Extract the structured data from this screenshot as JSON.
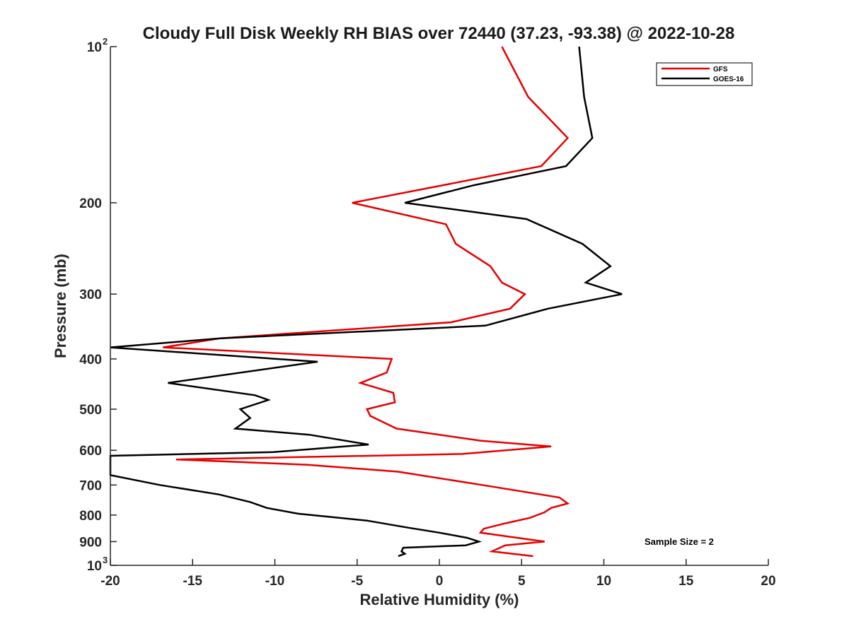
{
  "chart_data": {
    "type": "line",
    "title": "Cloudy Full Disk Weekly RH BIAS over 72440 (37.23, -93.38) @ 2022-10-28",
    "xlabel": "Relative Humidity (%)",
    "ylabel": "Pressure (mb)",
    "xlim": [
      -20,
      20
    ],
    "ylim": [
      100,
      1000
    ],
    "yscale": "log",
    "y_reversed": true,
    "grid": false,
    "legend_position": "top-right",
    "x_ticks": [
      -20,
      -15,
      -10,
      -5,
      0,
      5,
      10,
      15,
      20
    ],
    "x_tick_labels": [
      "-20",
      "-15",
      "-10",
      "-5",
      "0",
      "5",
      "10",
      "15",
      "20"
    ],
    "y_ticks": [
      {
        "value": 100,
        "base": "10",
        "exp": "2"
      },
      {
        "value": 200,
        "label": "200"
      },
      {
        "value": 300,
        "label": "300"
      },
      {
        "value": 400,
        "label": "400"
      },
      {
        "value": 500,
        "label": "500"
      },
      {
        "value": 600,
        "label": "600"
      },
      {
        "value": 700,
        "label": "700"
      },
      {
        "value": 800,
        "label": "800"
      },
      {
        "value": 900,
        "label": "900"
      },
      {
        "value": 1000,
        "base": "10",
        "exp": "3"
      }
    ],
    "annotation": "Sample Size = 2",
    "series": [
      {
        "name": "GFS",
        "color": "#e60000",
        "points": [
          {
            "x": 3.8,
            "y": 100
          },
          {
            "x": 5.4,
            "y": 125
          },
          {
            "x": 7.8,
            "y": 150
          },
          {
            "x": 6.2,
            "y": 170
          },
          {
            "x": -5.3,
            "y": 200
          },
          {
            "x": 0.4,
            "y": 220
          },
          {
            "x": 1.0,
            "y": 240
          },
          {
            "x": 3.1,
            "y": 265
          },
          {
            "x": 3.8,
            "y": 285
          },
          {
            "x": 5.2,
            "y": 300
          },
          {
            "x": 4.3,
            "y": 320
          },
          {
            "x": 0.7,
            "y": 340
          },
          {
            "x": -13.3,
            "y": 365
          },
          {
            "x": -16.8,
            "y": 380
          },
          {
            "x": -2.9,
            "y": 400
          },
          {
            "x": -3.2,
            "y": 425
          },
          {
            "x": -4.8,
            "y": 445
          },
          {
            "x": -2.8,
            "y": 465
          },
          {
            "x": -2.7,
            "y": 485
          },
          {
            "x": -4.4,
            "y": 500
          },
          {
            "x": -4.2,
            "y": 515
          },
          {
            "x": -2.6,
            "y": 545
          },
          {
            "x": 2.5,
            "y": 575
          },
          {
            "x": 6.8,
            "y": 590
          },
          {
            "x": 1.4,
            "y": 610
          },
          {
            "x": -16.0,
            "y": 625
          },
          {
            "x": -8.0,
            "y": 640
          },
          {
            "x": -2.5,
            "y": 660
          },
          {
            "x": 2.6,
            "y": 700
          },
          {
            "x": 7.3,
            "y": 740
          },
          {
            "x": 7.8,
            "y": 760
          },
          {
            "x": 6.8,
            "y": 775
          },
          {
            "x": 6.4,
            "y": 790
          },
          {
            "x": 5.5,
            "y": 810
          },
          {
            "x": 4.0,
            "y": 830
          },
          {
            "x": 2.7,
            "y": 850
          },
          {
            "x": 2.5,
            "y": 865
          },
          {
            "x": 6.4,
            "y": 900
          },
          {
            "x": 4.0,
            "y": 915
          },
          {
            "x": 3.2,
            "y": 940
          },
          {
            "x": 5.7,
            "y": 960
          }
        ]
      },
      {
        "name": "GOES-16",
        "color": "#000000",
        "points": [
          {
            "x": 8.5,
            "y": 100
          },
          {
            "x": 8.8,
            "y": 125
          },
          {
            "x": 9.3,
            "y": 150
          },
          {
            "x": 7.7,
            "y": 170
          },
          {
            "x": 2.1,
            "y": 185
          },
          {
            "x": -2.1,
            "y": 200
          },
          {
            "x": 5.3,
            "y": 215
          },
          {
            "x": 8.7,
            "y": 240
          },
          {
            "x": 10.4,
            "y": 265
          },
          {
            "x": 8.9,
            "y": 285
          },
          {
            "x": 11.1,
            "y": 300
          },
          {
            "x": 6.6,
            "y": 320
          },
          {
            "x": 2.8,
            "y": 345
          },
          {
            "x": -13.3,
            "y": 365
          },
          {
            "x": -20.0,
            "y": 380
          },
          {
            "x": -7.4,
            "y": 405
          },
          {
            "x": -16.5,
            "y": 445
          },
          {
            "x": -11.2,
            "y": 470
          },
          {
            "x": -10.4,
            "y": 480
          },
          {
            "x": -12.1,
            "y": 500
          },
          {
            "x": -11.5,
            "y": 520
          },
          {
            "x": -12.4,
            "y": 545
          },
          {
            "x": -7.9,
            "y": 560
          },
          {
            "x": -4.3,
            "y": 585
          },
          {
            "x": -10.1,
            "y": 605
          },
          {
            "x": -20.0,
            "y": 615
          },
          {
            "x": -20.0,
            "y": 670
          },
          {
            "x": -17.0,
            "y": 700
          },
          {
            "x": -13.4,
            "y": 730
          },
          {
            "x": -11.5,
            "y": 755
          },
          {
            "x": -10.5,
            "y": 775
          },
          {
            "x": -8.6,
            "y": 795
          },
          {
            "x": -4.4,
            "y": 820
          },
          {
            "x": -2.0,
            "y": 845
          },
          {
            "x": 0.0,
            "y": 865
          },
          {
            "x": 1.7,
            "y": 885
          },
          {
            "x": 2.4,
            "y": 900
          },
          {
            "x": 1.6,
            "y": 915
          },
          {
            "x": -2.2,
            "y": 925
          },
          {
            "x": -2.3,
            "y": 940
          },
          {
            "x": -2.1,
            "y": 950
          },
          {
            "x": -2.5,
            "y": 960
          }
        ]
      }
    ]
  }
}
